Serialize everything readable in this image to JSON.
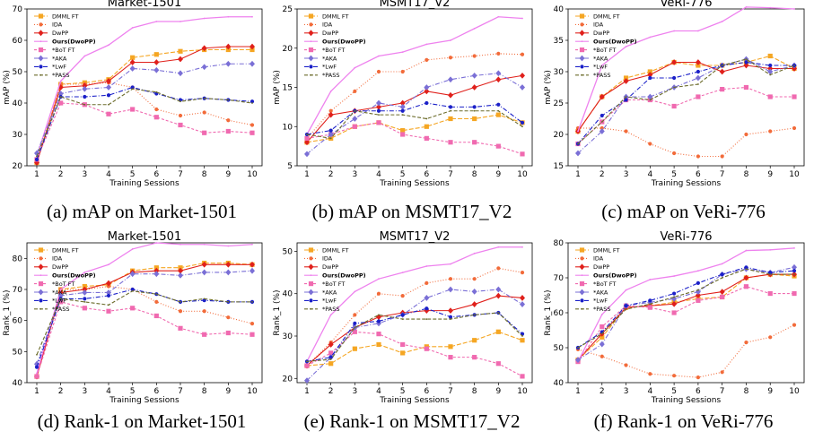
{
  "series_styles": [
    {
      "name": "DMML FT",
      "color": "#f5a623",
      "marker": "square",
      "dash": "5,2",
      "bold": false
    },
    {
      "name": "IDA",
      "color": "#f26b3a",
      "marker": "dot",
      "dash": "1,2",
      "bold": false
    },
    {
      "name": "DwPP",
      "color": "#e0201b",
      "marker": "diamond",
      "dash": "",
      "bold": false
    },
    {
      "name": "Ours(DwoPP)",
      "color": "#ee82ee",
      "marker": "none",
      "dash": "",
      "bold": true
    },
    {
      "name": "*BoT FT",
      "color": "#f06ab0",
      "marker": "square",
      "dash": "3,2",
      "bold": false
    },
    {
      "name": "*AKA",
      "color": "#7a6fd6",
      "marker": "diamond",
      "dash": "5,2,1,2",
      "bold": false
    },
    {
      "name": "*LwF",
      "color": "#1b20c8",
      "marker": "dot",
      "dash": "5,2,1,2",
      "bold": false
    },
    {
      "name": "*PASS",
      "color": "#6b6b2a",
      "marker": "none",
      "dash": "4,2",
      "bold": false
    }
  ],
  "chart_data": [
    {
      "type": "line",
      "title": "Market-1501",
      "xlabel": "Training Sessions",
      "ylabel": "mAP (%)",
      "caption": "(a) mAP on Market-1501",
      "x": [
        1,
        2,
        3,
        4,
        5,
        6,
        7,
        8,
        9,
        10
      ],
      "ylim": [
        20,
        70
      ],
      "yticks": [
        20,
        30,
        40,
        50,
        60,
        70
      ],
      "series": [
        {
          "name": "DMML FT",
          "values": [
            21,
            46,
            46.5,
            47.5,
            54.5,
            55.5,
            56.5,
            57,
            57,
            57
          ]
        },
        {
          "name": "IDA",
          "values": [
            21,
            46,
            46,
            46.5,
            45,
            38,
            36,
            37,
            34.5,
            33
          ]
        },
        {
          "name": "DwPP",
          "values": [
            21,
            45,
            45.5,
            47,
            53,
            53,
            54,
            57.5,
            58,
            58
          ]
        },
        {
          "name": "Ours(DwoPP)",
          "values": [
            23,
            47,
            55,
            58.5,
            64,
            66,
            66,
            67,
            67.5,
            67.5
          ]
        },
        {
          "name": "*BoT FT",
          "values": [
            22,
            40,
            39.5,
            36.5,
            38,
            35.5,
            33,
            30.5,
            31,
            30.5
          ]
        },
        {
          "name": "*AKA",
          "values": [
            24,
            43,
            44.5,
            45,
            51,
            50.5,
            49.5,
            51.5,
            52.5,
            52.5
          ]
        },
        {
          "name": "*LwF",
          "values": [
            22,
            42,
            42,
            42.5,
            45,
            43,
            41,
            41.5,
            41,
            40.5
          ]
        },
        {
          "name": "*PASS",
          "values": [
            23,
            42,
            39.5,
            39.5,
            44.5,
            43.5,
            40.5,
            41.5,
            41,
            40
          ]
        }
      ]
    },
    {
      "type": "line",
      "title": "MSMT17_V2",
      "xlabel": "Training Sessions",
      "ylabel": "mAP (%)",
      "caption": "(b) mAP on MSMT17_V2",
      "x": [
        1,
        2,
        3,
        4,
        5,
        6,
        7,
        8,
        9,
        10
      ],
      "ylim": [
        5,
        25
      ],
      "yticks": [
        5,
        10,
        15,
        20,
        25
      ],
      "series": [
        {
          "name": "DMML FT",
          "values": [
            8,
            8.5,
            10,
            10.5,
            9.5,
            10,
            11,
            11,
            11.5,
            10.5
          ]
        },
        {
          "name": "IDA",
          "values": [
            8.5,
            12,
            14.5,
            17,
            17,
            18.5,
            18.8,
            19,
            19.3,
            19.2
          ]
        },
        {
          "name": "DwPP",
          "values": [
            8,
            11.5,
            12,
            12.5,
            13,
            14.5,
            14,
            15,
            16,
            16.5
          ]
        },
        {
          "name": "Ours(DwoPP)",
          "values": [
            9,
            14.5,
            17.5,
            19,
            19.5,
            20.5,
            21,
            22.5,
            24,
            23.8
          ]
        },
        {
          "name": "*BoT FT",
          "values": [
            8.5,
            9,
            10,
            10.5,
            9,
            8.5,
            8,
            8,
            7.5,
            6.5
          ]
        },
        {
          "name": "*AKA",
          "values": [
            6.5,
            9,
            11,
            13,
            12.5,
            15,
            16,
            16.5,
            16.8,
            15
          ]
        },
        {
          "name": "*LwF",
          "values": [
            9,
            9.5,
            12,
            12,
            12,
            13,
            12.5,
            12.5,
            12.8,
            10.5
          ]
        },
        {
          "name": "*PASS",
          "values": [
            9,
            8.5,
            12,
            11.5,
            11.5,
            11,
            12,
            12,
            12,
            10
          ]
        }
      ]
    },
    {
      "type": "line",
      "title": "VeRi-776",
      "xlabel": "Training Sessions",
      "ylabel": "mAP (%)",
      "caption": "(c) mAP on VeRi-776",
      "x": [
        1,
        2,
        3,
        4,
        5,
        6,
        7,
        8,
        9,
        10
      ],
      "ylim": [
        15,
        40
      ],
      "yticks": [
        15,
        20,
        25,
        30,
        35,
        40
      ],
      "series": [
        {
          "name": "DMML FT",
          "values": [
            20.5,
            26,
            29,
            30,
            31.5,
            31,
            31,
            31.5,
            32.5,
            30.5
          ]
        },
        {
          "name": "IDA",
          "values": [
            21,
            21,
            20.5,
            18.5,
            17,
            16.5,
            16.5,
            20,
            20.5,
            21
          ]
        },
        {
          "name": "DwPP",
          "values": [
            20.5,
            26,
            28.5,
            29.5,
            31.5,
            31.5,
            30,
            31,
            30.5,
            30.5
          ]
        },
        {
          "name": "Ours(DwoPP)",
          "values": [
            20.5,
            31,
            34,
            35.5,
            36.5,
            36.5,
            38,
            40.3,
            40.2,
            40
          ]
        },
        {
          "name": "*BoT FT",
          "values": [
            18.5,
            22,
            25.5,
            25.5,
            24.5,
            26,
            27.2,
            27.5,
            26,
            26
          ]
        },
        {
          "name": "*AKA",
          "values": [
            17,
            20.5,
            26,
            26,
            27.5,
            29,
            31,
            32,
            30,
            31
          ]
        },
        {
          "name": "*LwF",
          "values": [
            18.5,
            23,
            25.5,
            29,
            29,
            30,
            31,
            31.5,
            31,
            31
          ]
        },
        {
          "name": "*PASS",
          "values": [
            18.5,
            22,
            26,
            25.5,
            27.5,
            28,
            31,
            32,
            29.5,
            31
          ]
        }
      ]
    },
    {
      "type": "line",
      "title": "Market-1501",
      "xlabel": "Training Sessions",
      "ylabel": "Rank_1 (%)",
      "caption": "(d) Rank-1 on Market-1501",
      "x": [
        1,
        2,
        3,
        4,
        5,
        6,
        7,
        8,
        9,
        10
      ],
      "ylim": [
        40,
        85
      ],
      "yticks": [
        40,
        50,
        60,
        70,
        80
      ],
      "series": [
        {
          "name": "DMML FT",
          "values": [
            42,
            70,
            71,
            71.5,
            76,
            77,
            77,
            78.5,
            78.5,
            78
          ]
        },
        {
          "name": "IDA",
          "values": [
            42,
            70,
            70,
            71,
            70,
            66,
            63,
            63,
            61,
            59
          ]
        },
        {
          "name": "DwPP",
          "values": [
            42,
            69,
            70,
            72,
            75.5,
            76,
            76,
            78,
            78,
            78
          ]
        },
        {
          "name": "Ours(DwoPP)",
          "values": [
            43,
            70,
            75.5,
            78,
            83,
            85,
            84.5,
            84.5,
            84,
            84.5
          ]
        },
        {
          "name": "*BoT FT",
          "values": [
            42,
            66,
            64,
            63,
            64,
            61.5,
            57.5,
            55.5,
            56,
            55.5
          ]
        },
        {
          "name": "*AKA",
          "values": [
            46,
            68,
            69,
            69,
            75,
            75,
            74.5,
            75.5,
            75.5,
            76
          ]
        },
        {
          "name": "*LwF",
          "values": [
            45,
            67,
            67,
            68,
            70,
            68.5,
            66,
            66.5,
            66,
            66
          ]
        },
        {
          "name": "*PASS",
          "values": [
            49,
            67,
            66,
            65,
            69.5,
            68.5,
            66,
            67,
            66,
            66
          ]
        }
      ]
    },
    {
      "type": "line",
      "title": "MSMT17_V2",
      "xlabel": "Training Sessions",
      "ylabel": "Rank_1 (%)",
      "caption": "(e) Rank-1 on MSMT17_V2",
      "x": [
        1,
        2,
        3,
        4,
        5,
        6,
        7,
        8,
        9,
        10
      ],
      "ylim": [
        19,
        52
      ],
      "yticks": [
        20,
        30,
        40,
        50
      ],
      "series": [
        {
          "name": "DMML FT",
          "values": [
            23,
            23.5,
            27,
            28,
            26,
            27.5,
            27.5,
            29,
            31,
            29
          ]
        },
        {
          "name": "IDA",
          "values": [
            23,
            28.5,
            35,
            40,
            39.5,
            42.5,
            43.5,
            43.5,
            46,
            45
          ]
        },
        {
          "name": "DwPP",
          "values": [
            23,
            28,
            32,
            34.5,
            35.5,
            36,
            36,
            37.5,
            39.5,
            39
          ]
        },
        {
          "name": "Ours(DwoPP)",
          "values": [
            24,
            35,
            40.5,
            43.5,
            45,
            46.5,
            47,
            49.5,
            51,
            51
          ]
        },
        {
          "name": "*BoT FT",
          "values": [
            23,
            26,
            31,
            30.5,
            28,
            27,
            25,
            25,
            23.5,
            20.5
          ]
        },
        {
          "name": "*AKA",
          "values": [
            19.5,
            25,
            32,
            33,
            35,
            39,
            41,
            40.5,
            41,
            37.5
          ]
        },
        {
          "name": "*LwF",
          "values": [
            24,
            25,
            33,
            33.5,
            35,
            36.5,
            34.5,
            35,
            35.5,
            30.5
          ]
        },
        {
          "name": "*PASS",
          "values": [
            24,
            24.5,
            32,
            35,
            34,
            34,
            34,
            35,
            35.5,
            30
          ]
        }
      ]
    },
    {
      "type": "line",
      "title": "VeRi-776",
      "xlabel": "Training Sessions",
      "ylabel": "Rank_1 (%)",
      "caption": "(f) Rank-1 on VeRi-776",
      "x": [
        1,
        2,
        3,
        4,
        5,
        6,
        7,
        8,
        9,
        10
      ],
      "ylim": [
        40,
        80
      ],
      "yticks": [
        40,
        50,
        60,
        70,
        80
      ],
      "series": [
        {
          "name": "DMML FT",
          "values": [
            46.5,
            53,
            61.5,
            62,
            63,
            64,
            64.5,
            70,
            71,
            70.5
          ]
        },
        {
          "name": "IDA",
          "values": [
            49.5,
            47.5,
            45,
            42.5,
            42,
            41.5,
            43,
            51.5,
            53,
            56.5
          ]
        },
        {
          "name": "DwPP",
          "values": [
            46.5,
            54,
            61.5,
            62,
            62.5,
            65,
            66,
            70,
            71,
            71
          ]
        },
        {
          "name": "Ours(DwoPP)",
          "values": [
            46,
            59.5,
            66.5,
            69.5,
            70.5,
            72,
            74,
            77.8,
            78,
            78.5
          ]
        },
        {
          "name": "*BoT FT",
          "values": [
            46,
            56,
            62,
            61.5,
            60,
            63.5,
            64.5,
            67.5,
            65.5,
            65.5
          ]
        },
        {
          "name": "*AKA",
          "values": [
            46.5,
            51,
            62,
            63,
            64,
            66,
            71,
            72.5,
            71.5,
            73
          ]
        },
        {
          "name": "*LwF",
          "values": [
            50,
            54.5,
            62,
            63.5,
            65.5,
            68.5,
            71,
            73,
            71.5,
            72
          ]
        },
        {
          "name": "*PASS",
          "values": [
            50,
            54,
            61,
            62.5,
            64.5,
            66.5,
            70,
            72.5,
            71,
            71
          ]
        }
      ]
    }
  ]
}
